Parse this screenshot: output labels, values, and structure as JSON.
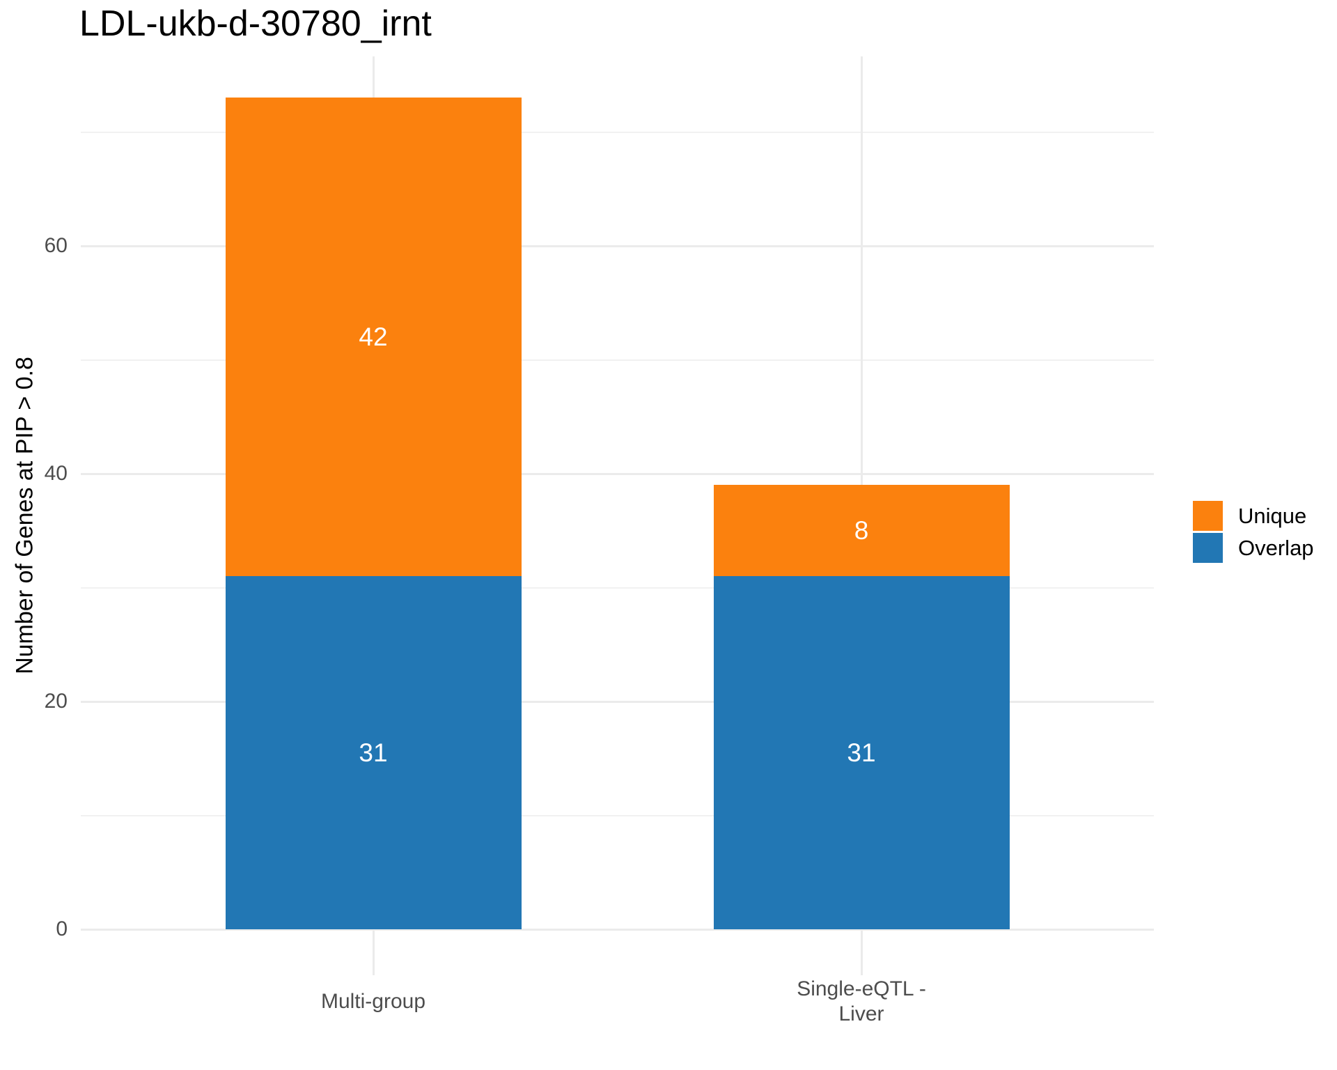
{
  "title": "LDL-ukb-d-30780_irnt",
  "chart_data": {
    "type": "bar",
    "stacked": true,
    "title": "LDL-ukb-d-30780_irnt",
    "xlabel": "",
    "ylabel": "Number of Genes at PIP > 0.8",
    "categories": [
      "Multi-group",
      "Single-eQTL -\nLiver"
    ],
    "series": [
      {
        "name": "Overlap",
        "color": "#2277b4",
        "values": [
          31,
          31
        ]
      },
      {
        "name": "Unique",
        "color": "#fb810e",
        "values": [
          42,
          8
        ]
      }
    ],
    "totals": [
      73,
      39
    ],
    "y_ticks": [
      0,
      20,
      40,
      60
    ],
    "y_minor_ticks": [
      10,
      30,
      50,
      70
    ],
    "ylim": [
      0,
      76.6
    ],
    "grid": true,
    "legend_position": "right",
    "bar_label_color": "#ffffff"
  },
  "legend": {
    "items": [
      {
        "label": "Unique",
        "color": "#fb810e"
      },
      {
        "label": "Overlap",
        "color": "#2277b4"
      }
    ]
  }
}
